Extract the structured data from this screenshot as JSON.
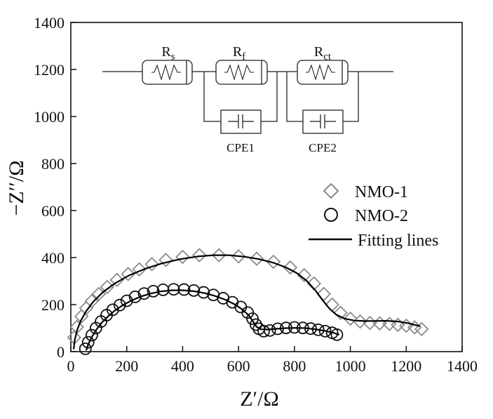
{
  "chart_data": {
    "type": "scatter",
    "title": "",
    "xlabel": "Z′/Ω",
    "ylabel": "−Z′′/Ω",
    "xlim": [
      0,
      1400
    ],
    "ylim": [
      0,
      1400
    ],
    "xticks": [
      0,
      200,
      400,
      600,
      800,
      1000,
      1200,
      1400
    ],
    "yticks": [
      0,
      200,
      400,
      600,
      800,
      1000,
      1200,
      1400
    ],
    "grid": false,
    "legend_position": "right-middle",
    "series": [
      {
        "name": "NMO-1",
        "marker": "diamond",
        "color": "#8a8a8a",
        "points": [
          [
            12,
            60
          ],
          [
            22,
            105
          ],
          [
            38,
            150
          ],
          [
            55,
            185
          ],
          [
            75,
            215
          ],
          [
            100,
            245
          ],
          [
            130,
            275
          ],
          [
            165,
            305
          ],
          [
            205,
            330
          ],
          [
            245,
            350
          ],
          [
            290,
            372
          ],
          [
            340,
            390
          ],
          [
            400,
            403
          ],
          [
            460,
            410
          ],
          [
            530,
            410
          ],
          [
            600,
            405
          ],
          [
            665,
            395
          ],
          [
            725,
            382
          ],
          [
            785,
            358
          ],
          [
            835,
            325
          ],
          [
            870,
            290
          ],
          [
            905,
            245
          ],
          [
            935,
            200
          ],
          [
            965,
            165
          ],
          [
            1000,
            140
          ],
          [
            1035,
            128
          ],
          [
            1070,
            122
          ],
          [
            1105,
            120
          ],
          [
            1140,
            118
          ],
          [
            1170,
            114
          ],
          [
            1200,
            110
          ],
          [
            1230,
            103
          ],
          [
            1255,
            96
          ]
        ]
      },
      {
        "name": "NMO-2",
        "marker": "circle",
        "color": "#111111",
        "points": [
          [
            52,
            12
          ],
          [
            62,
            40
          ],
          [
            75,
            70
          ],
          [
            90,
            100
          ],
          [
            108,
            128
          ],
          [
            128,
            155
          ],
          [
            150,
            178
          ],
          [
            175,
            198
          ],
          [
            200,
            216
          ],
          [
            230,
            233
          ],
          [
            262,
            247
          ],
          [
            295,
            257
          ],
          [
            330,
            263
          ],
          [
            368,
            265
          ],
          [
            405,
            264
          ],
          [
            440,
            260
          ],
          [
            475,
            252
          ],
          [
            510,
            241
          ],
          [
            545,
            227
          ],
          [
            578,
            210
          ],
          [
            608,
            190
          ],
          [
            633,
            166
          ],
          [
            650,
            140
          ],
          [
            662,
            115
          ],
          [
            673,
            97
          ],
          [
            690,
            87
          ],
          [
            712,
            90
          ],
          [
            740,
            97
          ],
          [
            770,
            101
          ],
          [
            800,
            103
          ],
          [
            830,
            101
          ],
          [
            858,
            98
          ],
          [
            885,
            93
          ],
          [
            910,
            87
          ],
          [
            935,
            80
          ],
          [
            952,
            72
          ]
        ]
      },
      {
        "name": "Fitting lines",
        "marker": "line",
        "color": "#000000",
        "lines": [
          [
            [
              10,
              10
            ],
            [
              14,
              50
            ],
            [
              22,
              90
            ],
            [
              35,
              130
            ],
            [
              55,
              172
            ],
            [
              80,
              212
            ],
            [
              115,
              253
            ],
            [
              160,
              292
            ],
            [
              210,
              325
            ],
            [
              265,
              352
            ],
            [
              325,
              375
            ],
            [
              390,
              393
            ],
            [
              455,
              405
            ],
            [
              510,
              410
            ],
            [
              565,
              410
            ],
            [
              620,
              404
            ],
            [
              675,
              393
            ],
            [
              725,
              378
            ],
            [
              770,
              358
            ],
            [
              810,
              333
            ],
            [
              845,
              300
            ],
            [
              875,
              260
            ],
            [
              900,
              220
            ],
            [
              925,
              183
            ],
            [
              950,
              157
            ],
            [
              980,
              140
            ],
            [
              1015,
              132
            ],
            [
              1050,
              130
            ],
            [
              1090,
              130
            ],
            [
              1130,
              131
            ],
            [
              1170,
              128
            ],
            [
              1210,
              120
            ],
            [
              1250,
              108
            ]
          ],
          [
            [
              55,
              5
            ],
            [
              62,
              30
            ],
            [
              75,
              62
            ],
            [
              92,
              95
            ],
            [
              112,
              125
            ],
            [
              135,
              152
            ],
            [
              160,
              177
            ],
            [
              188,
              199
            ],
            [
              218,
              218
            ],
            [
              250,
              234
            ],
            [
              285,
              247
            ],
            [
              322,
              256
            ],
            [
              362,
              261
            ],
            [
              402,
              261
            ],
            [
              440,
              257
            ],
            [
              478,
              249
            ],
            [
              515,
              237
            ],
            [
              550,
              222
            ],
            [
              583,
              203
            ],
            [
              612,
              181
            ],
            [
              636,
              155
            ],
            [
              652,
              128
            ],
            [
              664,
              106
            ],
            [
              680,
              95
            ],
            [
              705,
              94
            ],
            [
              735,
              97
            ],
            [
              770,
              100
            ],
            [
              805,
              101
            ],
            [
              840,
              100
            ],
            [
              875,
              95
            ],
            [
              910,
              88
            ],
            [
              940,
              80
            ],
            [
              960,
              72
            ]
          ]
        ]
      }
    ],
    "inset": {
      "type": "circuit",
      "resistors": [
        "R",
        "R",
        "R"
      ],
      "resistor_subscripts": [
        "s",
        "f",
        "ct"
      ],
      "cpe_labels": [
        "CPE1",
        "CPE2"
      ]
    }
  }
}
